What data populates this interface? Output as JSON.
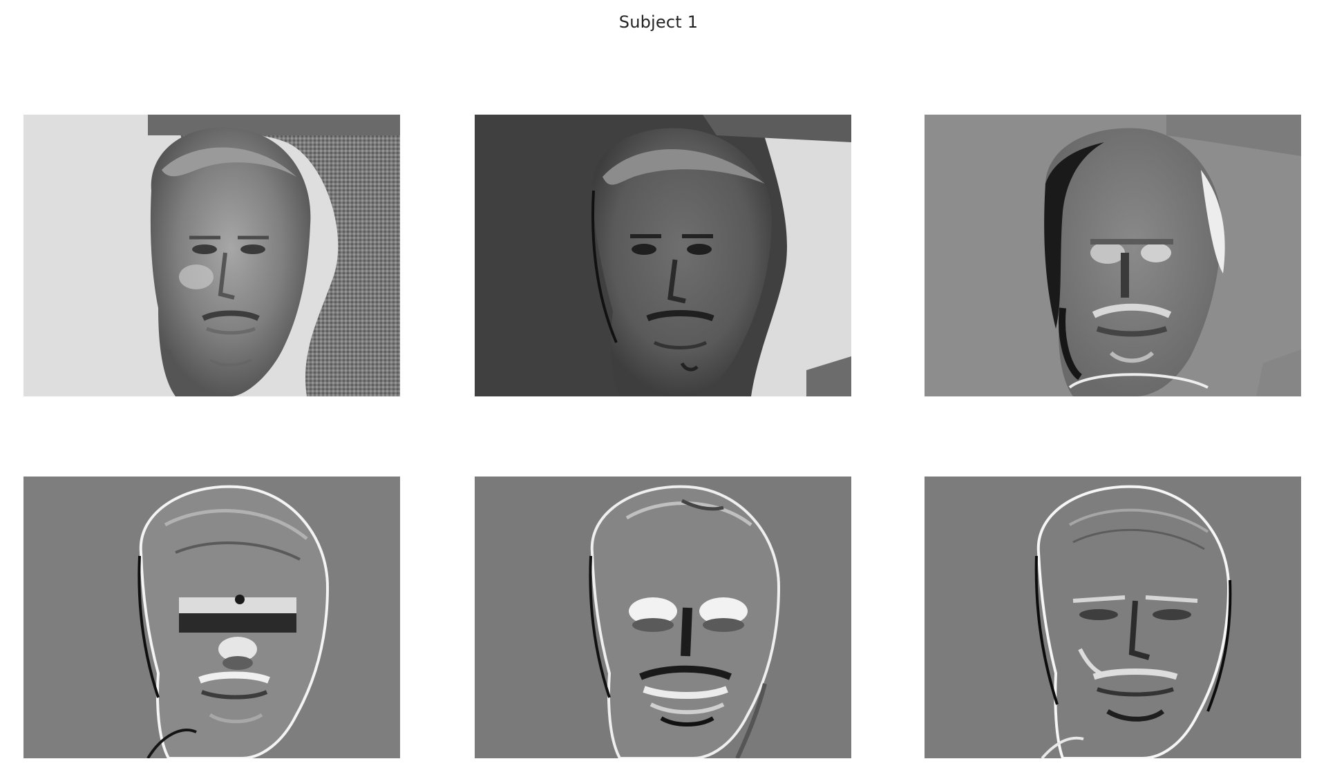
{
  "figure": {
    "title": "Subject 1"
  },
  "panels": [
    {
      "kind": "mean-face",
      "tone": "light-background"
    },
    {
      "kind": "eigenface",
      "tone": "dark-left-light-right"
    },
    {
      "kind": "eigenface",
      "tone": "mid-gray-dark-left-edge"
    },
    {
      "kind": "eigenface",
      "tone": "edge-detail"
    },
    {
      "kind": "eigenface",
      "tone": "edge-detail-bright-eyes"
    },
    {
      "kind": "eigenface",
      "tone": "edge-detail-fine"
    }
  ],
  "colors": {
    "background": "#ffffff",
    "title_text": "#222222"
  }
}
